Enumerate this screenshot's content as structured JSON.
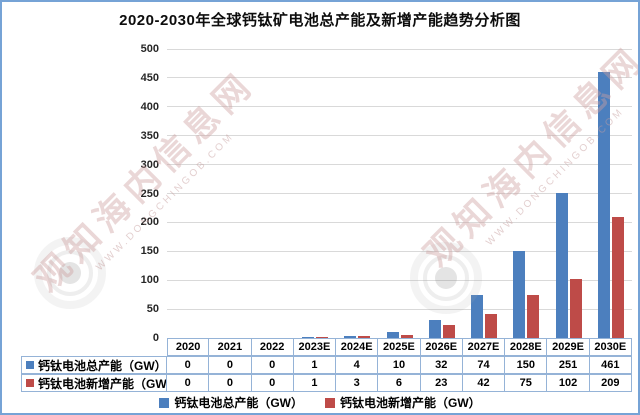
{
  "title": "2020-2030年全球钙钛矿电池总产能及新增产能趋势分析图",
  "watermark": {
    "site_name": "观知海内信息网",
    "site_url": "WWW.DONGCHINGOB.COM"
  },
  "chart_data": {
    "type": "bar",
    "title": "2020-2030年全球钙钛矿电池总产能及新增产能趋势分析图",
    "categories": [
      "2020",
      "2021",
      "2022",
      "2023E",
      "2024E",
      "2025E",
      "2026E",
      "2027E",
      "2028E",
      "2029E",
      "2030E"
    ],
    "series": [
      {
        "name": "钙钛电池总产能（GW）",
        "color": "#4c7fbe",
        "values": [
          0,
          0,
          0,
          1,
          4,
          10,
          32,
          74,
          150,
          251,
          461
        ]
      },
      {
        "name": "钙钛电池新增产能（GW）",
        "color": "#be4b48",
        "values": [
          0,
          0,
          0,
          1,
          3,
          6,
          23,
          42,
          75,
          102,
          209
        ]
      }
    ],
    "xlabel": "",
    "ylabel": "",
    "ylim": [
      0,
      500
    ],
    "ytick_step": 50,
    "grid": true,
    "legend_position": "bottom",
    "data_table_shown": true
  },
  "colors": {
    "frame_border": "#76a3d6",
    "gridline": "#d9d9d9",
    "table_border": "#95b3d7",
    "series_total": "#4c7fbe",
    "series_new": "#be4b48"
  }
}
